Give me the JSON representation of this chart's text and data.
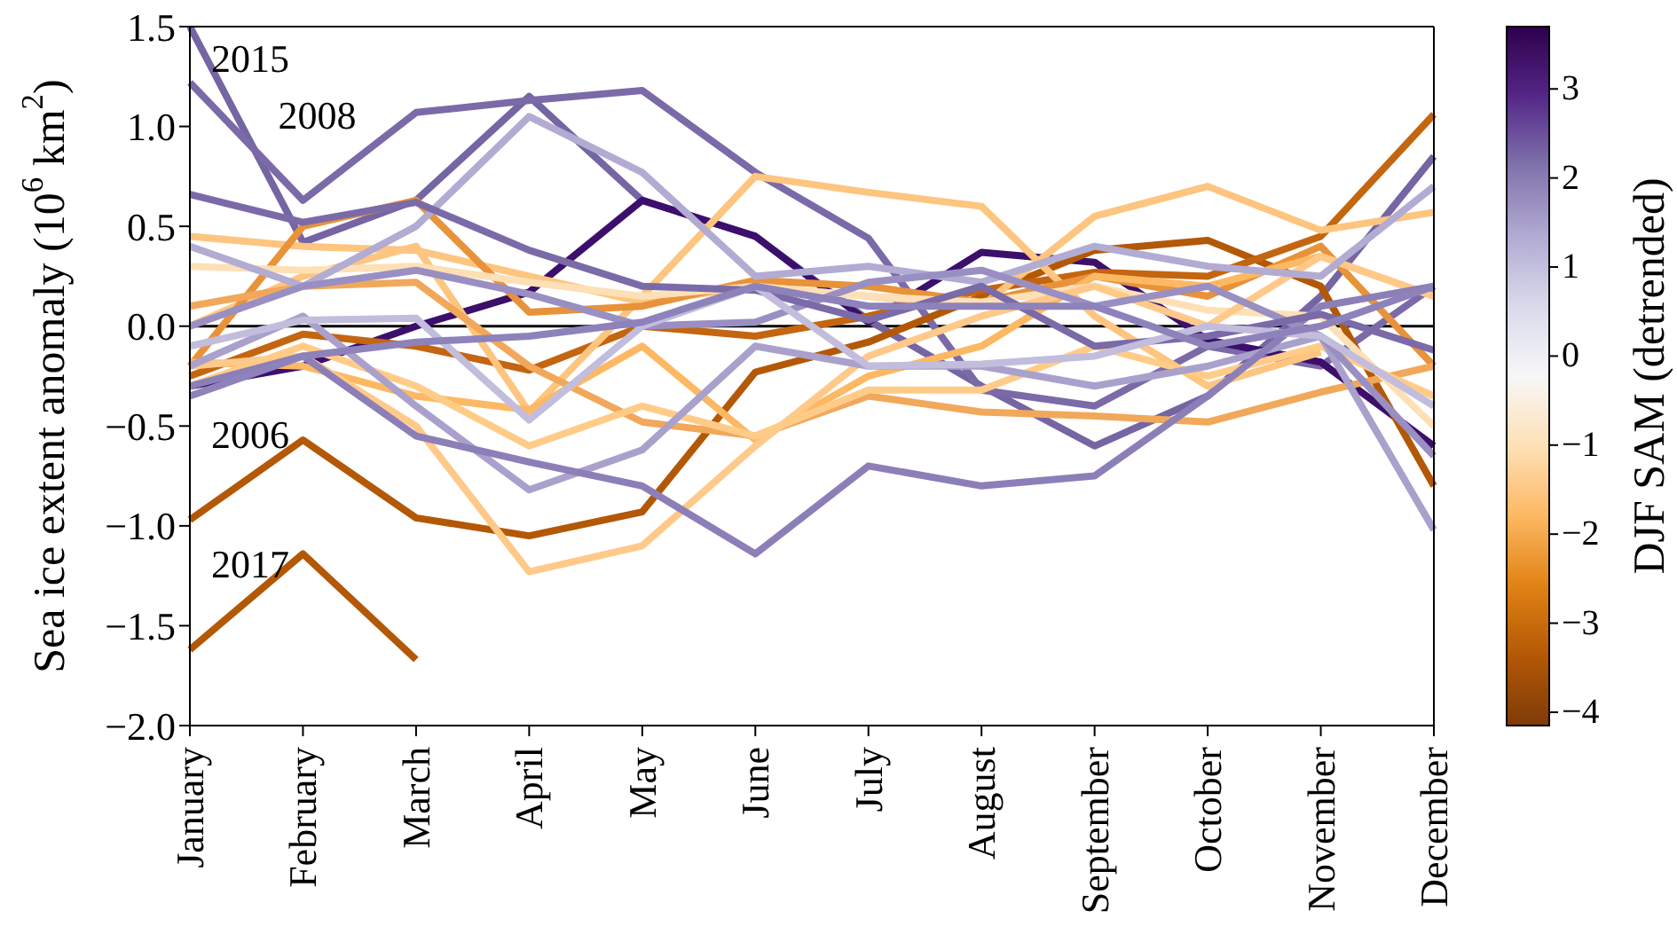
{
  "chart_data": {
    "type": "line",
    "categories": [
      "January",
      "February",
      "March",
      "April",
      "May",
      "June",
      "July",
      "August",
      "September",
      "October",
      "November",
      "December"
    ],
    "ylabel": "Sea ice extent anomaly (10$^{6}$ km$^{2}$)",
    "ylim": [
      -2.0,
      1.5
    ],
    "yticks": [
      {
        "value": -2.0,
        "label": "−2.0"
      },
      {
        "value": -1.5,
        "label": "−1.5"
      },
      {
        "value": -1.0,
        "label": "−1.0"
      },
      {
        "value": -0.5,
        "label": "−0.5"
      },
      {
        "value": 0,
        "label": "0.0"
      },
      {
        "value": 0.5,
        "label": "0.5"
      },
      {
        "value": 1.0,
        "label": "1.0"
      },
      {
        "value": 1.5,
        "label": "1.5"
      }
    ],
    "clabel": "DJF SAM (detrended)",
    "clim": [
      -4.15,
      3.7
    ],
    "cticks": [
      {
        "value": -4,
        "label": "−4"
      },
      {
        "value": -3,
        "label": "−3"
      },
      {
        "value": -2,
        "label": "−2"
      },
      {
        "value": -1,
        "label": "−1"
      },
      0,
      1,
      2,
      3
    ],
    "marker": "none",
    "line_style": "solid",
    "ref_lines": [
      {
        "axis": "y",
        "value": 0,
        "color": "#000000"
      }
    ],
    "annotations": [
      {
        "text": "2015",
        "x": "January",
        "y": 1.5
      },
      {
        "text": "2008",
        "x": "February",
        "y": 0.63
      },
      {
        "text": "2006",
        "x": "January",
        "y": -0.97
      },
      {
        "text": "2017",
        "x": "January",
        "y": -1.62
      }
    ],
    "series": [
      {
        "color": "#7565a3",
        "values": [
          1.5,
          0.42,
          0.63,
          1.15,
          0.63,
          0.45,
          0.03,
          -0.3,
          -0.6,
          -0.35,
          0.15,
          0.85
        ]
      },
      {
        "color": "#7b6aa8",
        "values": [
          1.22,
          0.63,
          1.07,
          1.13,
          1.18,
          0.77,
          0.44,
          -0.32,
          -0.4,
          -0.1,
          -0.2,
          0.2
        ]
      },
      {
        "color": "#3b0f6b",
        "values": [
          -0.3,
          -0.2,
          0.0,
          0.17,
          0.63,
          0.45,
          0.02,
          0.37,
          0.32,
          -0.07,
          -0.18,
          -0.6
        ]
      },
      {
        "color": "#b35806",
        "values": [
          -0.97,
          -0.57,
          -0.96,
          -1.05,
          -0.93,
          -0.23,
          -0.08,
          0.15,
          0.38,
          0.43,
          0.2,
          -0.8
        ]
      },
      {
        "color": "#b35806",
        "values": [
          -1.62,
          -1.14,
          -1.67,
          null,
          null,
          null,
          null,
          null,
          null,
          null,
          null,
          null
        ]
      },
      {
        "color": "#c4650f",
        "values": [
          -0.25,
          -0.04,
          -0.1,
          -0.22,
          0.0,
          -0.05,
          0.05,
          0.18,
          0.27,
          0.25,
          0.45,
          1.06
        ]
      },
      {
        "color": "#fdc57f",
        "values": [
          0.0,
          0.25,
          0.4,
          -0.43,
          0.15,
          0.75,
          0.67,
          0.6,
          0.05,
          -0.3,
          -0.13,
          null
        ]
      },
      {
        "color": "#fdc57f",
        "values": [
          0.45,
          0.4,
          0.38,
          0.25,
          0.12,
          0.2,
          0.15,
          0.1,
          0.55,
          0.7,
          0.48,
          0.57
        ]
      },
      {
        "color": "#e8923a",
        "values": [
          -0.2,
          0.5,
          0.63,
          0.07,
          0.1,
          0.23,
          0.2,
          0.12,
          0.25,
          0.15,
          0.4,
          -0.2
        ]
      },
      {
        "color": "#f1a85b",
        "values": [
          0.1,
          0.2,
          0.22,
          -0.2,
          -0.48,
          -0.55,
          -0.35,
          -0.43,
          -0.45,
          -0.48,
          -0.33,
          -0.2
        ]
      },
      {
        "color": "#fdb863",
        "values": [
          -0.18,
          -0.2,
          -0.35,
          -0.42,
          -0.1,
          -0.57,
          -0.25,
          -0.1,
          0.25,
          0.2,
          0.35,
          0.15
        ]
      },
      {
        "color": "#fee0b6",
        "values": [
          0.3,
          0.28,
          0.3,
          0.22,
          0.15,
          0.2,
          0.15,
          0.12,
          0.2,
          0.08,
          0.05,
          -0.5
        ]
      },
      {
        "color": "#ffc98a",
        "values": [
          -0.2,
          -0.15,
          -0.5,
          -1.23,
          -1.1,
          -0.6,
          -0.15,
          0.05,
          0.2,
          0.0,
          0.35,
          0.15
        ]
      },
      {
        "color": "#ffcc88",
        "values": [
          -0.3,
          -0.1,
          -0.3,
          -0.6,
          -0.4,
          -0.55,
          -0.32,
          -0.32,
          -0.1,
          -0.25,
          -0.1,
          -0.35
        ]
      },
      {
        "color": "#b2abd2",
        "values": [
          0.4,
          0.2,
          0.5,
          1.05,
          0.77,
          0.25,
          0.3,
          0.22,
          0.4,
          0.3,
          0.25,
          0.7
        ]
      },
      {
        "color": "#a9a1cc",
        "values": [
          -0.2,
          0.05,
          -0.4,
          -0.82,
          -0.62,
          -0.1,
          -0.2,
          -0.2,
          -0.3,
          -0.2,
          -0.05,
          -1.02
        ]
      },
      {
        "color": "#8c7fb8",
        "values": [
          -0.3,
          -0.15,
          -0.55,
          -0.68,
          -0.8,
          -1.14,
          -0.7,
          -0.8,
          -0.75,
          -0.35,
          0.1,
          0.2
        ]
      },
      {
        "color": "#9a8fc2",
        "values": [
          0.0,
          0.2,
          0.28,
          0.16,
          0.0,
          0.02,
          0.22,
          0.28,
          0.1,
          0.2,
          -0.05,
          -0.65
        ]
      },
      {
        "color": "#7b6aa8",
        "values": [
          0.66,
          0.52,
          0.62,
          0.38,
          0.2,
          0.18,
          0.03,
          0.2,
          -0.1,
          -0.05,
          0.06,
          -0.12
        ]
      },
      {
        "color": "#c2bddc",
        "values": [
          -0.1,
          0.03,
          0.04,
          -0.47,
          0.0,
          0.2,
          -0.2,
          -0.19,
          -0.15,
          0.0,
          -0.05,
          -0.4
        ]
      },
      {
        "color": "#8e82bb",
        "values": [
          -0.35,
          -0.15,
          -0.08,
          -0.05,
          0.02,
          0.2,
          0.1,
          0.1,
          0.1,
          -0.1,
          0.0,
          0.2
        ]
      }
    ]
  }
}
